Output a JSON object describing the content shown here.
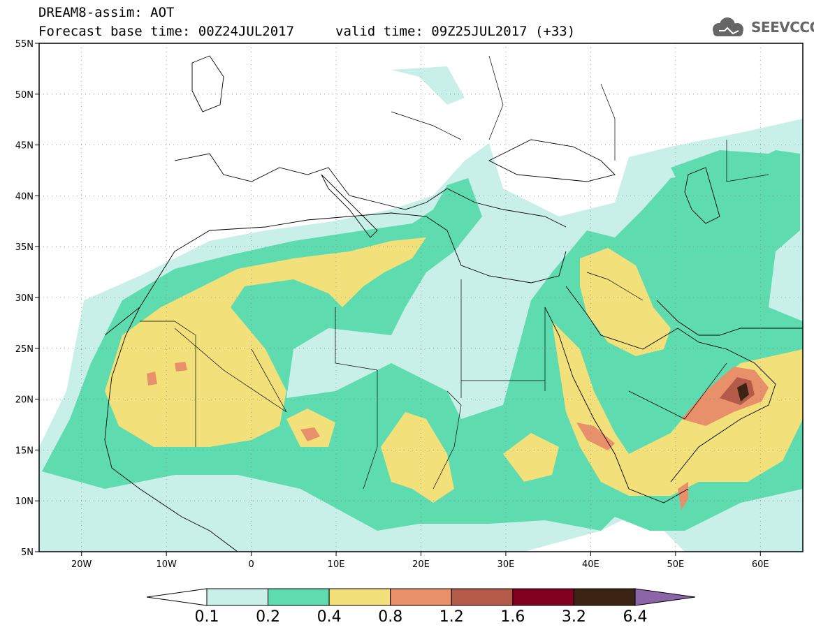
{
  "header": {
    "line1": "DREAM8-assim: AOT",
    "line2": "Forecast base time: 00Z24JUL2017",
    "valid": "valid time: 09Z25JUL2017 (+33)",
    "logo_text": "SEEVCCC"
  },
  "map": {
    "lon_range": [
      -25,
      65
    ],
    "lat_range": [
      5,
      55
    ],
    "lon_ticks": [
      {
        "lon": -20,
        "label": "20W"
      },
      {
        "lon": -10,
        "label": "10W"
      },
      {
        "lon": 0,
        "label": "0"
      },
      {
        "lon": 10,
        "label": "10E"
      },
      {
        "lon": 20,
        "label": "20E"
      },
      {
        "lon": 30,
        "label": "30E"
      },
      {
        "lon": 40,
        "label": "40E"
      },
      {
        "lon": 50,
        "label": "50E"
      },
      {
        "lon": 60,
        "label": "60E"
      }
    ],
    "lat_ticks": [
      {
        "lat": 55,
        "label": "55N"
      },
      {
        "lat": 50,
        "label": "50N"
      },
      {
        "lat": 45,
        "label": "45N"
      },
      {
        "lat": 40,
        "label": "40N"
      },
      {
        "lat": 35,
        "label": "35N"
      },
      {
        "lat": 30,
        "label": "30N"
      },
      {
        "lat": 25,
        "label": "25N"
      },
      {
        "lat": 20,
        "label": "20N"
      },
      {
        "lat": 15,
        "label": "15N"
      },
      {
        "lat": 10,
        "label": "10N"
      },
      {
        "lat": 5,
        "label": "5N"
      }
    ]
  },
  "colorbar": {
    "levels": [
      "0.1",
      "0.2",
      "0.4",
      "0.8",
      "1.2",
      "1.6",
      "3.2",
      "6.4"
    ],
    "colors": [
      "#ffffff",
      "#c8f0e8",
      "#5edcb0",
      "#f2e07a",
      "#e8906a",
      "#b45a48",
      "#800020",
      "#3c2414",
      "#8c64a8"
    ]
  }
}
